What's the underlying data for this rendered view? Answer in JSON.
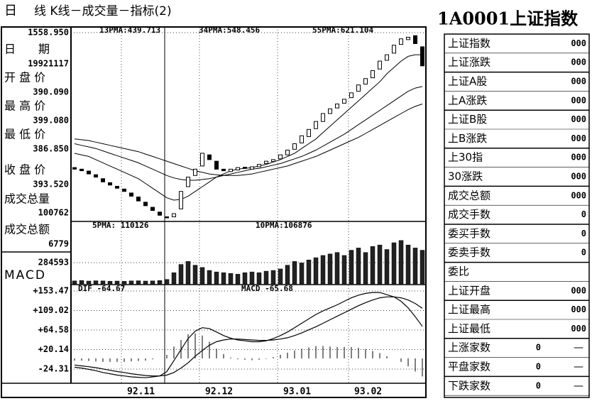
{
  "header": {
    "left": "日",
    "title": "线 K线－成交量－指标(2)"
  },
  "info_panel": {
    "items": [
      {
        "label": "日　　期",
        "value": "19921117"
      },
      {
        "label": "开 盘 价",
        "value": "390.090"
      },
      {
        "label": "最 高 价",
        "value": "399.080"
      },
      {
        "label": "最 低 价",
        "value": "386.850"
      },
      {
        "label": "收 盘 价",
        "value": "393.520"
      },
      {
        "label": "成交总量",
        "value": "100762"
      },
      {
        "label": "成交总额",
        "value": "6779"
      }
    ],
    "macd_label": "MACD"
  },
  "right_panel": {
    "title": "1A0001上证指数",
    "rows": [
      {
        "label": "上证指数",
        "value": "000"
      },
      {
        "label": "上证涨跌",
        "value": "000"
      },
      {
        "label": "上证A股",
        "value": "000"
      },
      {
        "label": "上A涨跌",
        "value": "000"
      },
      {
        "label": "上证B股",
        "value": "000"
      },
      {
        "label": "上B涨跌",
        "value": "000"
      },
      {
        "label": "上30指",
        "value": "000"
      },
      {
        "label": "30涨跌",
        "value": "000"
      },
      {
        "label": "成交总额",
        "value": "000"
      },
      {
        "label": "成交手数",
        "value": "0"
      },
      {
        "label": "委买手数",
        "value": "0"
      },
      {
        "label": "委卖手数",
        "value": "0"
      },
      {
        "label": "委比"
      },
      {
        "label": "上证开盘",
        "value": "000"
      },
      {
        "label": "上证最高",
        "value": "000"
      },
      {
        "label": "上证最低",
        "value": "000"
      },
      {
        "label": "上涨家数",
        "value": "0",
        "mark": "—"
      },
      {
        "label": "平盘家数",
        "value": "0",
        "mark": "—"
      },
      {
        "label": "下跌家数",
        "value": "0",
        "mark": "—"
      }
    ]
  },
  "chart_data": [
    {
      "type": "candlestick",
      "annotations": [
        "13PMA:439.713",
        "34PMA:548.456",
        "55PMA:621.104"
      ],
      "categories": [
        null,
        null,
        null,
        null,
        null,
        null,
        null,
        "92.11",
        null,
        null,
        null,
        null,
        null,
        null,
        null,
        null,
        null,
        null,
        "92.12",
        null,
        null,
        null,
        null,
        null,
        null,
        null,
        null,
        null,
        null,
        "93.01",
        null,
        null,
        null,
        null,
        null,
        null,
        null,
        null,
        null,
        "93.02",
        null,
        null,
        null,
        null,
        null,
        null,
        null,
        null,
        null,
        null
      ],
      "opens": [
        710,
        700,
        688,
        665,
        640,
        615,
        592,
        575,
        550,
        525,
        492,
        460,
        430,
        400,
        400,
        450,
        590,
        660,
        720,
        790,
        750,
        700,
        685,
        695,
        712,
        700,
        715,
        735,
        748,
        765,
        790,
        825,
        865,
        905,
        955,
        1000,
        1050,
        1085,
        1115,
        1150,
        1190,
        1235,
        1275,
        1330,
        1385,
        1430,
        1485,
        1515,
        1540,
        1470
      ],
      "closes": [
        700,
        690,
        670,
        650,
        620,
        600,
        580,
        560,
        530,
        500,
        470,
        440,
        410,
        393.52,
        420,
        560,
        650,
        700,
        800,
        760,
        700,
        690,
        700,
        710,
        705,
        715,
        730,
        750,
        760,
        790,
        820,
        860,
        910,
        950,
        1000,
        1050,
        1080,
        1110,
        1140,
        1180,
        1230,
        1270,
        1320,
        1380,
        1420,
        1480,
        1520,
        1530,
        1490,
        1350
      ],
      "series": [
        {
          "color": "#000000",
          "values": [
            800,
            790,
            780,
            760,
            740,
            720,
            700,
            680,
            660,
            640,
            610,
            580,
            550,
            520,
            505,
            510,
            530,
            560,
            590,
            620,
            650,
            670,
            690,
            700,
            705,
            710,
            720,
            730,
            745,
            760,
            780,
            800,
            830,
            860,
            890,
            930,
            970,
            1010,
            1050,
            1090,
            1130,
            1170,
            1210,
            1250,
            1300,
            1340,
            1380,
            1410,
            1420,
            1420
          ]
        },
        {
          "color": "#000000",
          "values": [
            860,
            850,
            840,
            830,
            815,
            800,
            785,
            770,
            755,
            740,
            720,
            700,
            680,
            660,
            645,
            635,
            630,
            630,
            635,
            640,
            650,
            660,
            670,
            680,
            690,
            700,
            705,
            715,
            725,
            735,
            750,
            765,
            780,
            800,
            820,
            845,
            870,
            895,
            920,
            950,
            980,
            1010,
            1040,
            1070,
            1100,
            1130,
            1160,
            1190,
            1210,
            1220
          ]
        },
        {
          "color": "#000000",
          "values": [
            890,
            885,
            880,
            870,
            860,
            850,
            840,
            830,
            820,
            810,
            795,
            780,
            765,
            750,
            735,
            720,
            705,
            690,
            680,
            670,
            665,
            660,
            660,
            660,
            665,
            670,
            680,
            690,
            700,
            710,
            720,
            735,
            750,
            765,
            780,
            800,
            820,
            840,
            860,
            880,
            900,
            925,
            950,
            975,
            1000,
            1025,
            1050,
            1075,
            1095,
            1110
          ]
        }
      ],
      "ylim": [
        380,
        1558.95
      ],
      "yticks": [
        {
          "value": 1558.95,
          "label": "1558.950"
        }
      ]
    },
    {
      "type": "bar",
      "annotations": [
        "5PMA: 110126",
        "10PMA:106876"
      ],
      "color": "#222222",
      "values": [
        40000,
        45000,
        38000,
        42000,
        40000,
        36000,
        38000,
        35000,
        40000,
        42000,
        38000,
        40000,
        45000,
        60000,
        150000,
        260000,
        300000,
        250000,
        220000,
        180000,
        160000,
        150000,
        140000,
        130000,
        150000,
        160000,
        150000,
        170000,
        180000,
        200000,
        250000,
        300000,
        280000,
        320000,
        350000,
        380000,
        400000,
        420000,
        380000,
        450000,
        480000,
        420000,
        500000,
        520000,
        460000,
        550000,
        580000,
        520000,
        480000,
        450000
      ],
      "ylim": [
        0,
        806000
      ],
      "yticks": [
        284593
      ]
    },
    {
      "type": "line",
      "annotations": [
        "DIF -64.67",
        "MACD -65.68"
      ],
      "series": [
        {
          "color": "#000000",
          "values": [
            -20,
            -22,
            -25,
            -28,
            -32,
            -35,
            -38,
            -40,
            -42,
            -43,
            -44,
            -42,
            -40,
            -30,
            -5,
            20,
            45,
            62,
            70,
            68,
            60,
            52,
            46,
            42,
            40,
            38,
            38,
            40,
            45,
            52,
            60,
            70,
            80,
            90,
            100,
            108,
            115,
            122,
            130,
            138,
            144,
            148,
            150,
            150,
            145,
            140,
            130,
            115,
            95,
            73
          ]
        },
        {
          "color": "#000000",
          "values": [
            -15,
            -17,
            -19,
            -21,
            -24,
            -27,
            -30,
            -32,
            -35,
            -37,
            -39,
            -40,
            -40,
            -38,
            -32,
            -22,
            -10,
            5,
            18,
            30,
            38,
            42,
            44,
            44,
            43,
            42,
            41,
            41,
            42,
            44,
            47,
            52,
            58,
            65,
            72,
            80,
            88,
            96,
            104,
            112,
            120,
            127,
            133,
            138,
            140,
            140,
            138,
            133,
            125,
            114
          ]
        }
      ],
      "bars": [
        -5,
        -5,
        -6,
        -7,
        -8,
        -8,
        -8,
        -8,
        -7,
        -6,
        -5,
        -2,
        0,
        8,
        27,
        42,
        55,
        57,
        52,
        38,
        22,
        10,
        2,
        -2,
        -3,
        -4,
        -3,
        -1,
        3,
        8,
        13,
        18,
        22,
        25,
        28,
        28,
        27,
        26,
        26,
        26,
        24,
        21,
        17,
        12,
        5,
        0,
        -8,
        -18,
        -30,
        -41
      ],
      "ylim": [
        -56.6,
        166.4
      ],
      "yticks": [
        {
          "value": 153.47,
          "label": "+153.47"
        },
        {
          "value": 109.02,
          "label": "+109.02"
        },
        {
          "value": 64.58,
          "label": "+64.58"
        },
        {
          "value": 20.14,
          "label": "+20.14"
        },
        -24.31
      ]
    }
  ]
}
